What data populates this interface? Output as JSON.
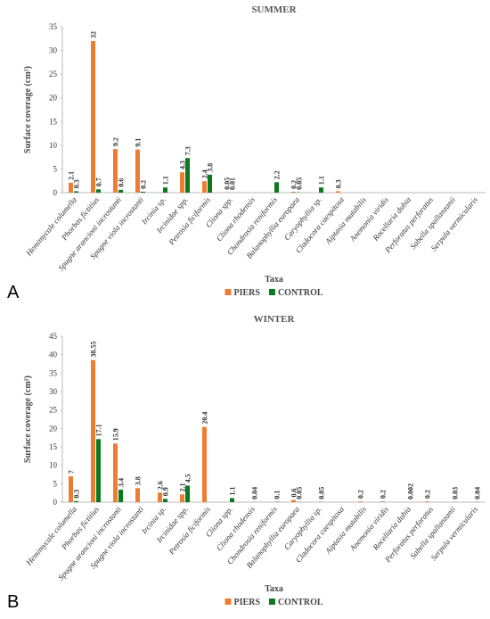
{
  "chart_data": [
    {
      "type": "bar",
      "panel": "A",
      "title": "SUMMER",
      "y_label": "Surface coverage (cm²)",
      "x_label": "Taxa",
      "categories": [
        "Hemimycale columella",
        "Phorbas fictitius",
        "Spugne arancioni incrostanti",
        "Spugne viola incrostanti",
        "Ircinia sp.",
        "Ircinidae spp.",
        "Petrosia ficiformis",
        "Cliona spp.",
        "Cliona rhodensis",
        "Chondrosia reniformis",
        "Balanophyllia europaea",
        "Caryophyllia sp.",
        "Cladocora caespitosa",
        "Aiptasia mutabilis",
        "Anemonia viridis",
        "Rocellaria dubia",
        "Perforatus perforatus",
        "Sabella spallanzanii",
        "Serpula vermicularis"
      ],
      "series": [
        {
          "name": "PIERS",
          "color": "#ed7d31",
          "values": [
            2.1,
            32,
            9.2,
            9.1,
            null,
            4.3,
            2.4,
            0.05,
            null,
            null,
            0.2,
            null,
            0.3,
            null,
            null,
            null,
            null,
            null,
            null
          ]
        },
        {
          "name": "CONTROL",
          "color": "#0b7a1f",
          "values": [
            0.3,
            0.7,
            0.6,
            0.2,
            1.1,
            7.3,
            3.8,
            0.01,
            null,
            2.2,
            0.05,
            1.1,
            null,
            null,
            null,
            null,
            null,
            null,
            null
          ]
        }
      ],
      "ylim": [
        0,
        35
      ],
      "yticks": [
        0,
        5,
        10,
        15,
        20,
        25,
        30,
        35
      ],
      "grid": false,
      "legend": "bottom"
    },
    {
      "type": "bar",
      "panel": "B",
      "title": "WINTER",
      "y_label": "Surface coverage (cm²)",
      "x_label": "Taxa",
      "categories": [
        "Hemimycale columella",
        "Phorbas fictitius",
        "Spugne arancioni incrostanti",
        "Spugne viola incrostanti",
        "Ircinia sp.",
        "Ircinidae spp.",
        "Petrosia ficiformis",
        "Cliona spp.",
        "Cliona rhodensis",
        "Chondrosia reniformis",
        "Balanophyllia europaea",
        "Caryophyllia sp.",
        "Cladocora caespitosa",
        "Aiptasia mutabilis",
        "Anemonia viridis",
        "Rocellaria dubia",
        "Perforatus perforatus",
        "Sabella spallanzanii",
        "Serpula vermicularis"
      ],
      "series": [
        {
          "name": "PIERS",
          "color": "#ed7d31",
          "values": [
            7,
            38.55,
            15.9,
            3.8,
            2.6,
            2.1,
            20.4,
            null,
            null,
            null,
            0.6,
            null,
            null,
            0.2,
            0.2,
            null,
            0.2,
            null,
            null
          ]
        },
        {
          "name": "CONTROL",
          "color": "#0b7a1f",
          "values": [
            0.3,
            17.1,
            3.4,
            null,
            0.9,
            4.5,
            null,
            1.1,
            0.04,
            0.1,
            0.05,
            0.05,
            null,
            null,
            null,
            0.002,
            null,
            0.03,
            0.04
          ]
        }
      ],
      "ylim": [
        0,
        45
      ],
      "yticks": [
        0,
        5,
        10,
        15,
        20,
        25,
        30,
        35,
        40,
        45
      ],
      "grid": false,
      "legend": "bottom"
    }
  ]
}
